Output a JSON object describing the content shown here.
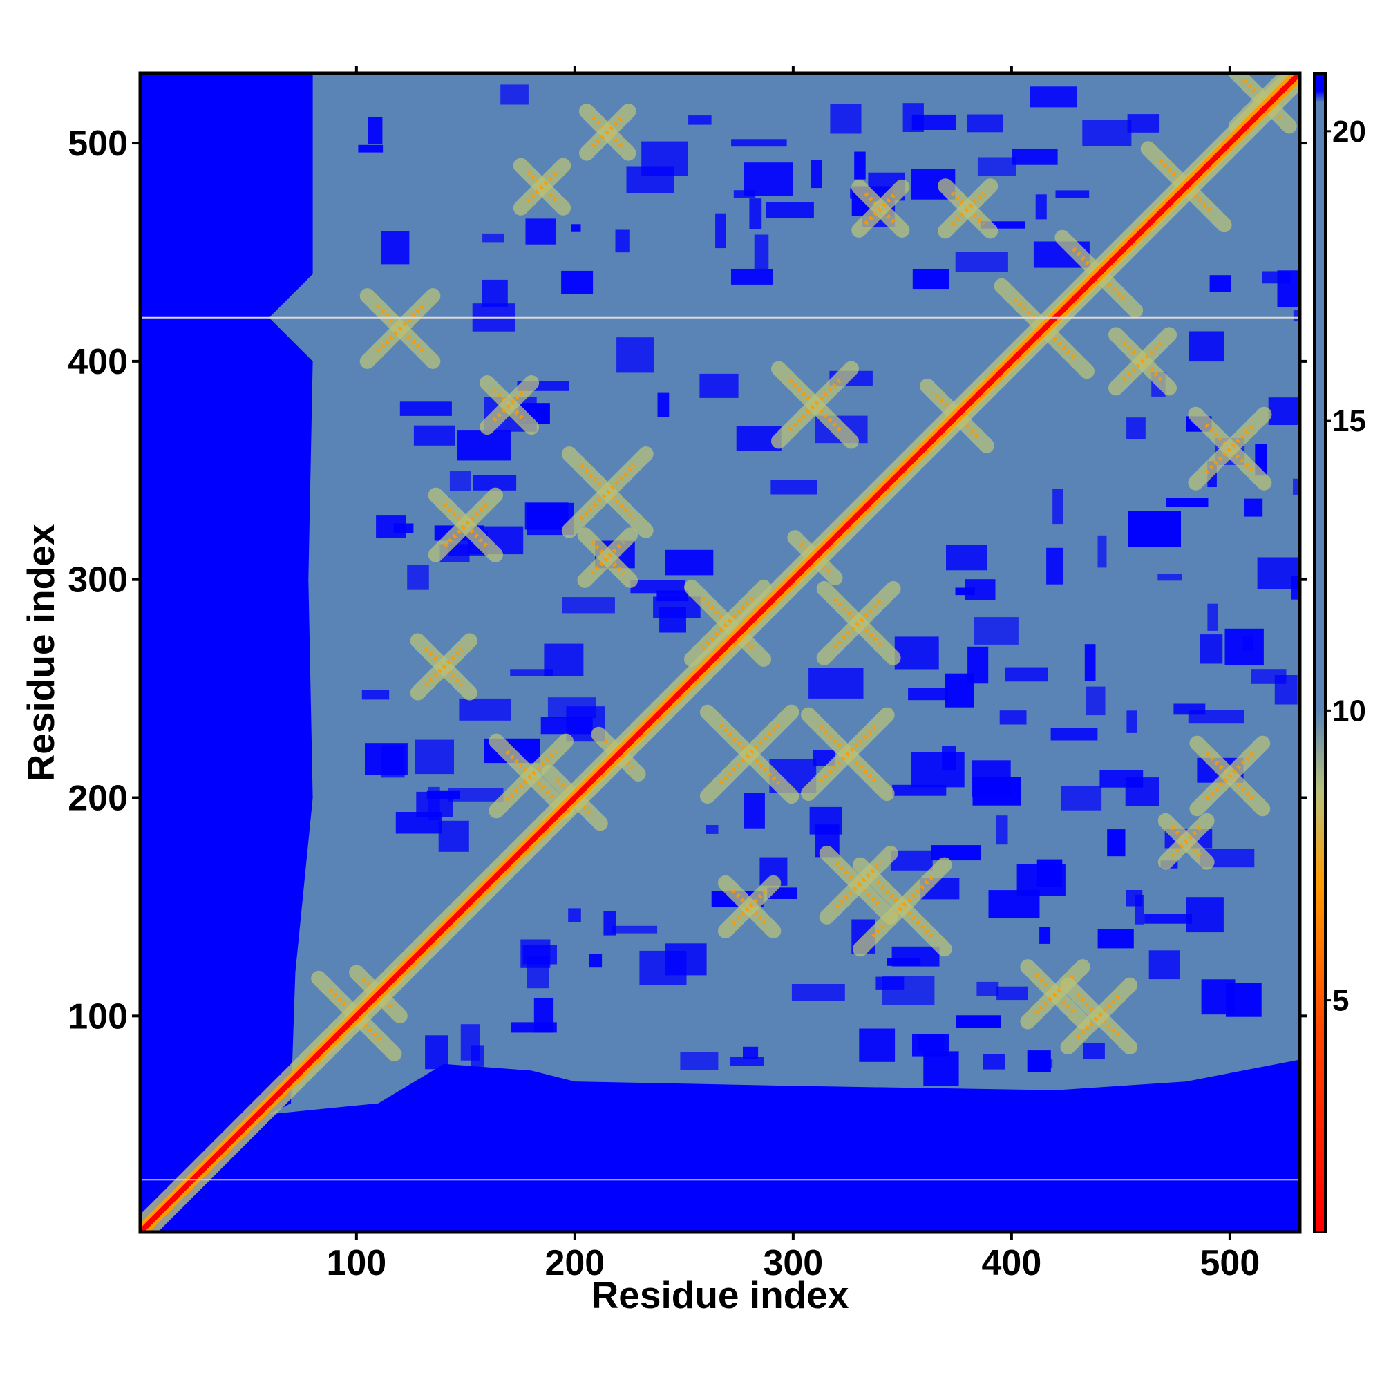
{
  "chart_data": {
    "type": "heatmap",
    "title": "",
    "xlabel": "Residue index",
    "ylabel": "Residue index",
    "xlim": [
      1,
      532
    ],
    "ylim": [
      1,
      532
    ],
    "x_ticks": [
      100,
      200,
      300,
      400,
      500
    ],
    "y_ticks": [
      100,
      200,
      300,
      400,
      500
    ],
    "x_tick_labels": [
      "100",
      "200",
      "300",
      "400",
      "500"
    ],
    "y_tick_labels": [
      "100",
      "200",
      "300",
      "400",
      "500"
    ],
    "colorbar": {
      "range": [
        1,
        21
      ],
      "ticks": [
        5,
        10,
        15,
        20
      ],
      "tick_labels": [
        "5",
        "10",
        "15",
        "20"
      ],
      "colors": [
        "#ff0000",
        "#ff7f00",
        "#b8c27a",
        "#5a84b6",
        "#0000ff"
      ]
    },
    "background_value": 21,
    "diagonal_value": 1,
    "missing_rows": [
      25,
      420
    ],
    "contact_regions": [
      {
        "x": [
          95,
          120
        ],
        "y": [
          95,
          120
        ]
      },
      {
        "x": [
          200,
          230
        ],
        "y": [
          200,
          230
        ]
      },
      {
        "x": [
          250,
          280
        ],
        "y": [
          250,
          280
        ]
      },
      {
        "x": [
          300,
          330
        ],
        "y": [
          300,
          330
        ]
      },
      {
        "x": [
          370,
          390
        ],
        "y": [
          370,
          390
        ]
      },
      {
        "x": [
          410,
          425
        ],
        "y": [
          410,
          425
        ]
      },
      {
        "x": [
          470,
          480
        ],
        "y": [
          470,
          480
        ]
      },
      {
        "x": [
          510,
          525
        ],
        "y": [
          510,
          525
        ]
      }
    ],
    "grid": false,
    "legend": "none"
  },
  "colors": {
    "frame": "#000000",
    "background": "#ffffff",
    "missing_row": "#d9d9d9"
  }
}
